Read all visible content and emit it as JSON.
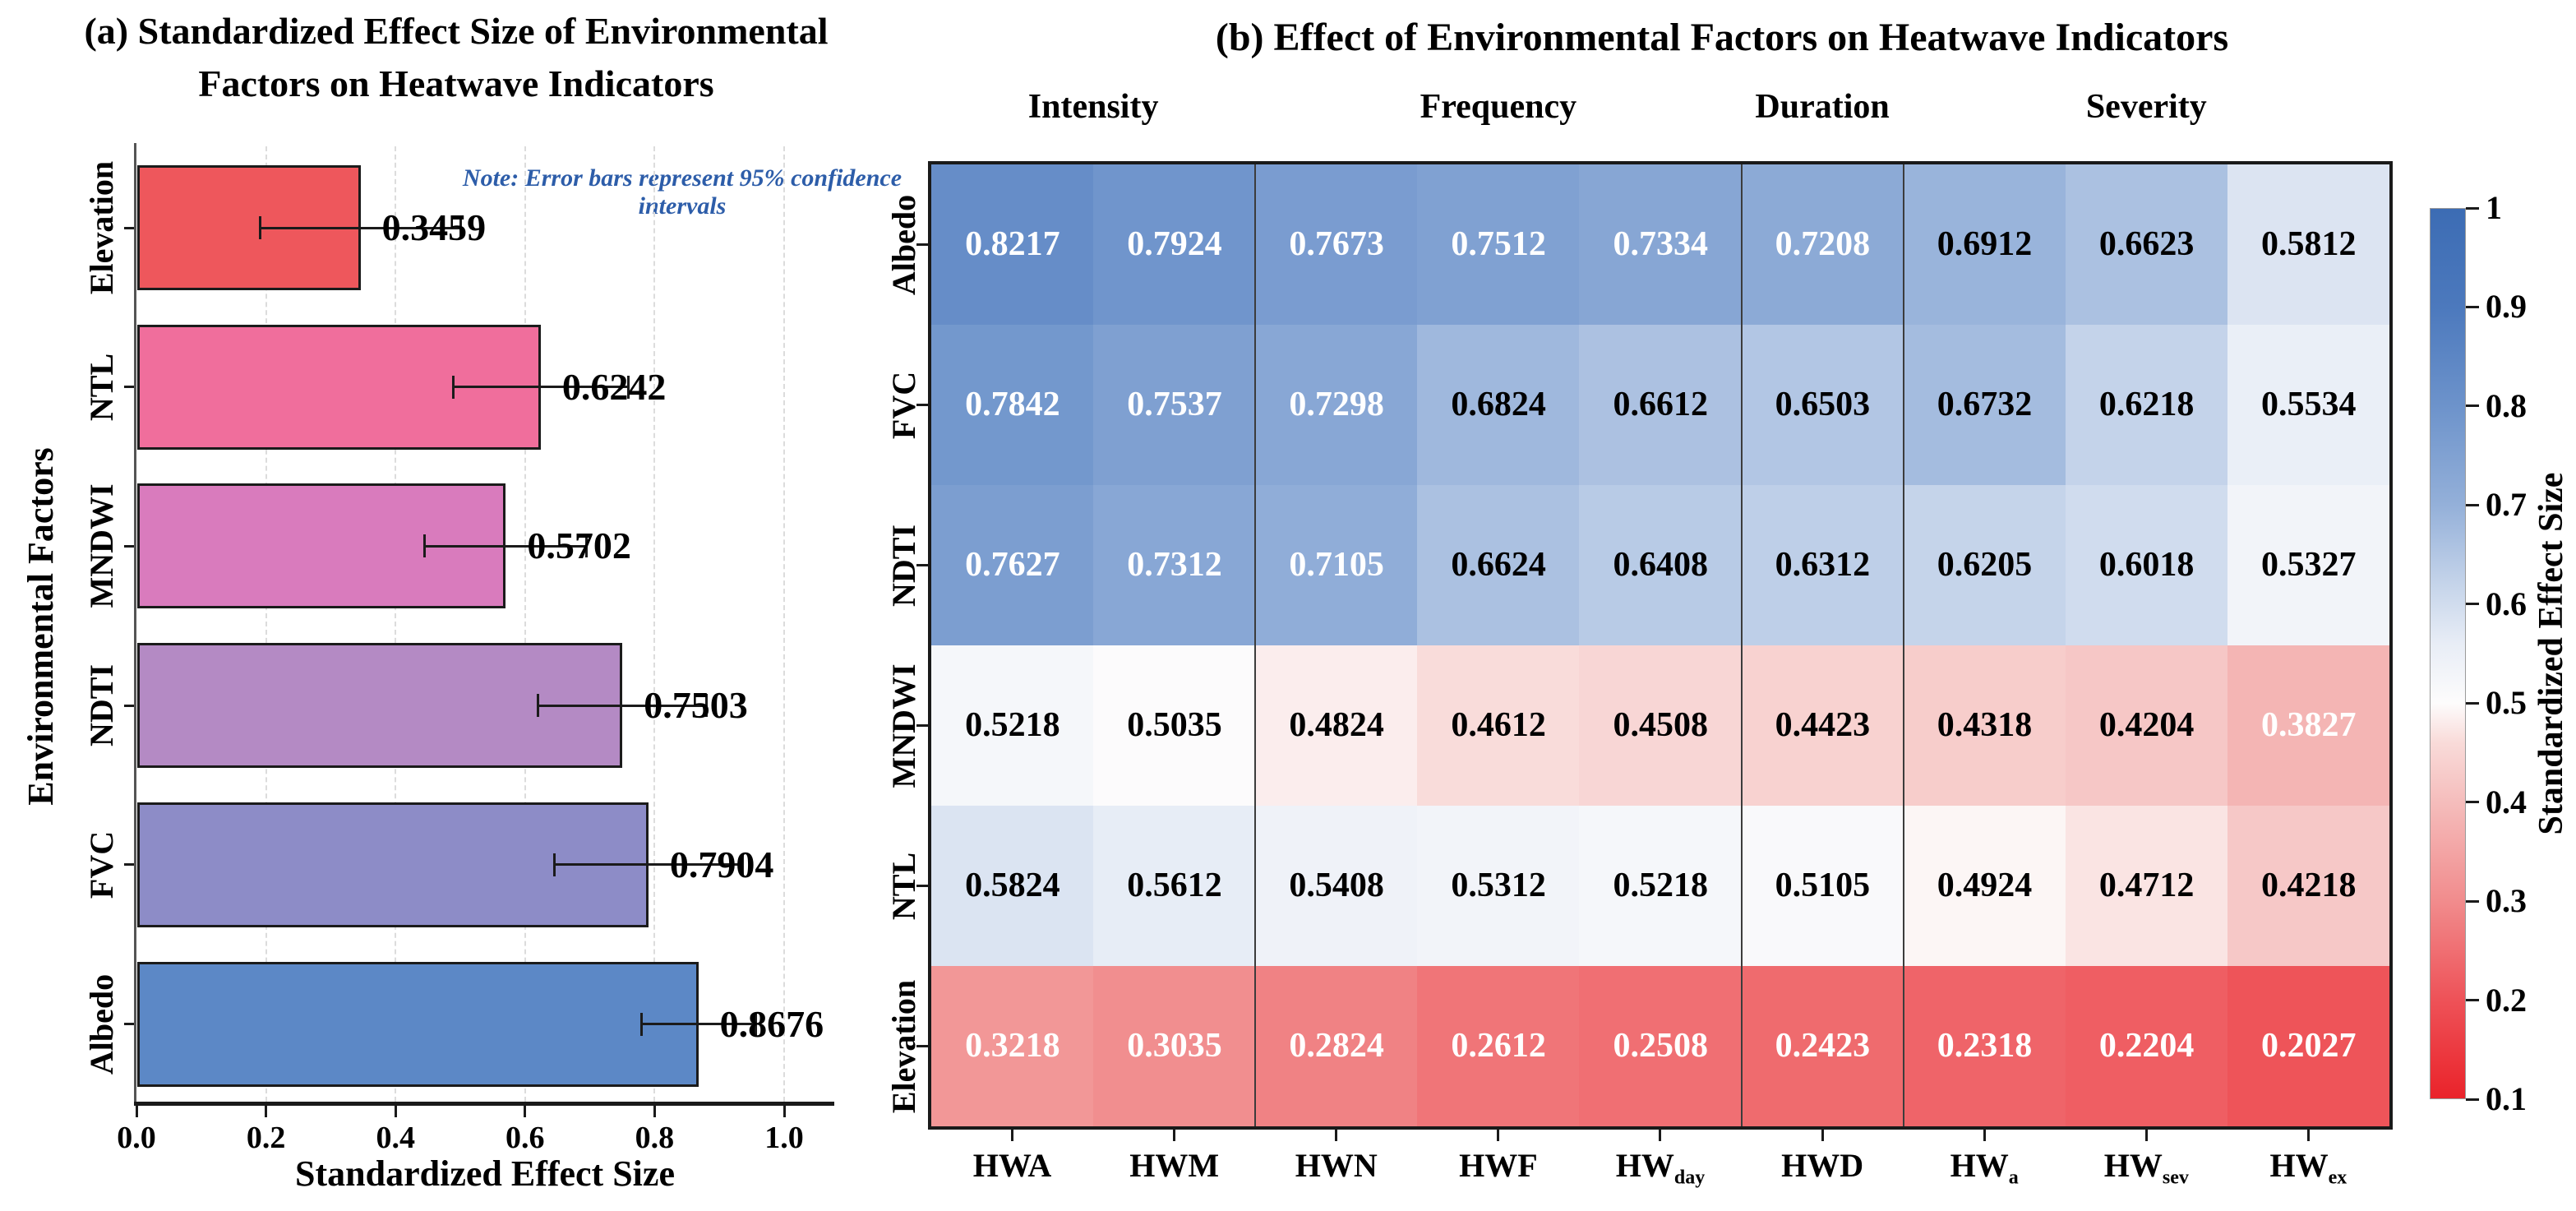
{
  "chart_data": [
    {
      "type": "bar",
      "panel": "a",
      "orientation": "horizontal",
      "title": "(a) Standardized Effect Size of Environmental Factors on Heatwave Indicators",
      "title_lines": [
        "(a) Standardized Effect Size of Environmental",
        "Factors on Heatwave  Indicators"
      ],
      "note": "Note: Error bars represent 95% confidence intervals",
      "xlabel": "Standardized Effect Size",
      "ylabel": "Environmental Factors",
      "categories": [
        "Elevation",
        "NTL",
        "MNDWI",
        "NDTI",
        "FVC",
        "Albedo"
      ],
      "values": [
        0.3459,
        0.6242,
        0.5702,
        0.7503,
        0.7904,
        0.8676
      ],
      "value_labels": [
        "0.3459",
        "0.6242",
        "0.5702",
        "0.7503",
        "0.7904",
        "0.8676"
      ],
      "error_bars": [
        0.155,
        0.135,
        0.125,
        0.13,
        0.145,
        0.088
      ],
      "bar_colors": [
        "#EE575C",
        "#F06E9C",
        "#D97BBD",
        "#B48AC4",
        "#8D8CC7",
        "#5C88C6"
      ],
      "xlim": [
        0,
        1.1
      ],
      "x_ticks": [
        0,
        0.2,
        0.4,
        0.6,
        0.8,
        1.0
      ],
      "x_tick_labels": [
        "0.0",
        "0.2",
        "0.4",
        "0.6",
        "0.8",
        "1.0"
      ],
      "grid": "dashed-vertical",
      "error_note_color": "#2d5da9"
    },
    {
      "type": "heatmap",
      "panel": "b",
      "title": "(b) Effect of Environmental Factors on Heatwave Indicators",
      "column_groups": [
        {
          "label": "Intensity",
          "span": 2
        },
        {
          "label": "Frequency",
          "span": 3
        },
        {
          "label": "Duration",
          "span": 1
        },
        {
          "label": "Severity",
          "span": 3
        }
      ],
      "columns": [
        {
          "label": "HWA",
          "subscript": ""
        },
        {
          "label": "HWM",
          "subscript": ""
        },
        {
          "label": "HWN",
          "subscript": ""
        },
        {
          "label": "HWF",
          "subscript": ""
        },
        {
          "label": "HW",
          "subscript": "day"
        },
        {
          "label": "HWD",
          "subscript": ""
        },
        {
          "label": "HW",
          "subscript": "a"
        },
        {
          "label": "HW",
          "subscript": "sev"
        },
        {
          "label": "HW",
          "subscript": "ex"
        }
      ],
      "rows": [
        "Albedo",
        "FVC",
        "NDTI",
        "MNDWI",
        "NTL",
        "Elevation"
      ],
      "values": [
        [
          0.8217,
          0.7924,
          0.7673,
          0.7512,
          0.7334,
          0.7208,
          0.6912,
          0.6623,
          0.5812
        ],
        [
          0.7842,
          0.7537,
          0.7298,
          0.6824,
          0.6612,
          0.6503,
          0.6732,
          0.6218,
          0.5534
        ],
        [
          0.7627,
          0.7312,
          0.7105,
          0.6624,
          0.6408,
          0.6312,
          0.6205,
          0.6018,
          0.5327
        ],
        [
          0.5218,
          0.5035,
          0.4824,
          0.4612,
          0.4508,
          0.4423,
          0.4318,
          0.4204,
          0.3827
        ],
        [
          0.5824,
          0.5612,
          0.5408,
          0.5312,
          0.5218,
          0.5105,
          0.4924,
          0.4712,
          0.4218
        ],
        [
          0.3218,
          0.3035,
          0.2824,
          0.2612,
          0.2508,
          0.2423,
          0.2318,
          0.2204,
          0.2027
        ]
      ],
      "colorbar": {
        "label": "Standardized Effect Size",
        "vmin": 0.1,
        "vmax": 1.0,
        "tick_values": [
          1,
          0.9,
          0.8,
          0.7,
          0.6,
          0.5,
          0.4,
          0.3,
          0.2,
          0.1
        ],
        "tick_labels": [
          "1",
          "0.9",
          "0.8",
          "0.7",
          "0.6",
          "0.5",
          "0.4",
          "0.3",
          "0.2",
          "0.1"
        ]
      },
      "colormap_stops": [
        {
          "v": 0.1,
          "color": "#EA232A"
        },
        {
          "v": 0.2,
          "color": "#EE5258"
        },
        {
          "v": 0.3,
          "color": "#F18C8D"
        },
        {
          "v": 0.4,
          "color": "#F5BDBC"
        },
        {
          "v": 0.46,
          "color": "#F9DBD9"
        },
        {
          "v": 0.5,
          "color": "#FDFCFC"
        },
        {
          "v": 0.56,
          "color": "#E8EDF6"
        },
        {
          "v": 0.62,
          "color": "#C5D4EA"
        },
        {
          "v": 0.7,
          "color": "#94B0D9"
        },
        {
          "v": 0.8,
          "color": "#6D93CB"
        },
        {
          "v": 0.9,
          "color": "#4C79BD"
        },
        {
          "v": 1.0,
          "color": "#3C6CB4"
        }
      ]
    }
  ]
}
